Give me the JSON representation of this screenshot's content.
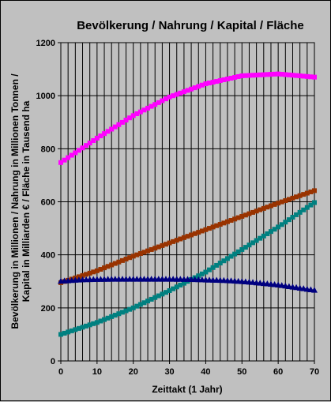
{
  "chart_data": {
    "type": "line",
    "title": "Bevölkerung / Nahrung / Kapital / Fläche",
    "xlabel": "Zeittakt (1 Jahr)",
    "ylabel": [
      "Bevölkerung in Millionen / Nahrung in Millionen Tonnen /",
      "Kapital in Milliarden € / Fläche in Tausend ha"
    ],
    "xlim": [
      0,
      70
    ],
    "ylim": [
      0,
      1200
    ],
    "x_ticks": [
      0,
      10,
      20,
      30,
      40,
      50,
      60,
      70
    ],
    "y_ticks": [
      0,
      200,
      400,
      600,
      800,
      1000,
      1200
    ],
    "grid": {
      "vertical_lines_every": 2,
      "horizontal_lines_every": 200
    },
    "series": [
      {
        "color": "#ff00ff",
        "marker": "square",
        "x": [
          0,
          10,
          20,
          30,
          40,
          50,
          60,
          70
        ],
        "y": [
          748,
          840,
          925,
          995,
          1045,
          1075,
          1082,
          1070
        ]
      },
      {
        "color": "#993300",
        "marker": "square",
        "x": [
          0,
          10,
          20,
          30,
          40,
          50,
          60,
          70
        ],
        "y": [
          295,
          340,
          395,
          445,
          495,
          545,
          595,
          642
        ]
      },
      {
        "color": "#008080",
        "marker": "square",
        "x": [
          0,
          10,
          20,
          30,
          40,
          50,
          60,
          70
        ],
        "y": [
          100,
          145,
          200,
          265,
          335,
          420,
          505,
          597
        ]
      },
      {
        "color": "#000080",
        "marker": "triangle",
        "x": [
          0,
          5,
          10,
          15,
          20,
          25,
          30,
          35,
          40,
          45,
          50,
          55,
          60,
          65,
          70
        ],
        "y": [
          300,
          305,
          307,
          308,
          308,
          308,
          308,
          307,
          305,
          303,
          299,
          293,
          286,
          276,
          266
        ]
      }
    ]
  }
}
